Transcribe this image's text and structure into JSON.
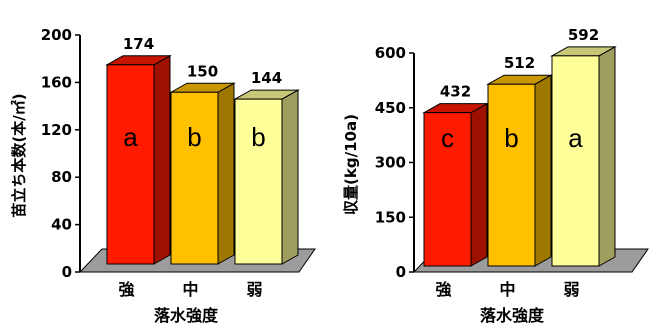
{
  "chart_data": [
    {
      "type": "bar",
      "xlabel": "落水強度",
      "ylabel": "苗立ち本数(本/㎡)",
      "categories": [
        "強",
        "中",
        "弱"
      ],
      "values": [
        174,
        150,
        144
      ],
      "group_letters": [
        "a",
        "b",
        "b"
      ],
      "ylim": [
        0,
        200
      ],
      "yticks": [
        "0",
        "40",
        "80",
        "120",
        "160",
        "200"
      ],
      "colors": [
        "#ff1a00",
        "#ffc000",
        "#ffff99"
      ],
      "grid": false
    },
    {
      "type": "bar",
      "xlabel": "落水強度",
      "ylabel": "収量(kg/10a)",
      "categories": [
        "強",
        "中",
        "弱"
      ],
      "values": [
        432,
        512,
        592
      ],
      "group_letters": [
        "c",
        "b",
        "a"
      ],
      "ylim": [
        0,
        600
      ],
      "yticks": [
        "0",
        "150",
        "300",
        "450",
        "600"
      ],
      "colors": [
        "#ff1a00",
        "#ffc000",
        "#ffff99"
      ],
      "grid": false
    }
  ]
}
